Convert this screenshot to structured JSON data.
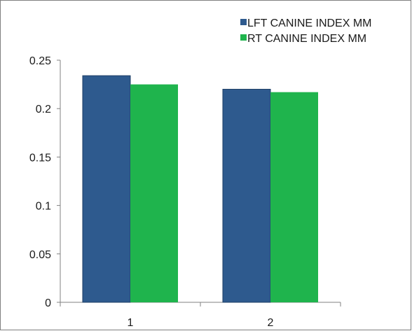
{
  "chart_data": {
    "type": "bar",
    "categories": [
      "1",
      "2"
    ],
    "series": [
      {
        "name": "LFT CANINE INDEX MM",
        "values": [
          0.234,
          0.22
        ],
        "color": "#2e5a8e"
      },
      {
        "name": "RT CANINE INDEX MM",
        "values": [
          0.225,
          0.217
        ],
        "color": "#1fb44d"
      }
    ],
    "ylim": [
      0,
      0.25
    ],
    "yticks": [
      "0",
      "0.05",
      "0.1",
      "0.15",
      "0.2",
      "0.25"
    ],
    "grid": false,
    "legend_position": "top-right"
  }
}
